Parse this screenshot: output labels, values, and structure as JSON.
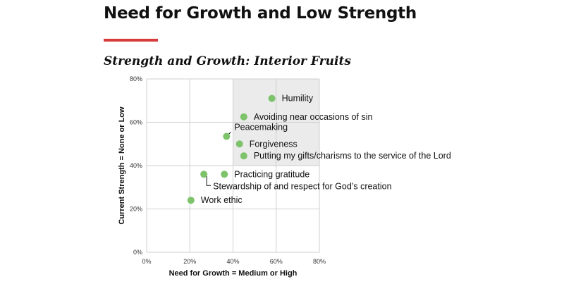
{
  "slide": {
    "title": "Need for Growth and Low Strength",
    "accent_color": "#d63a3a"
  },
  "chart_data": {
    "type": "scatter",
    "subtitle": "Strength and Growth:  Interior Fruits",
    "xlabel": "Need for Growth = Medium or High",
    "ylabel": "Current Strength = None or Low",
    "xlim": [
      0,
      80
    ],
    "ylim": [
      0,
      80
    ],
    "xticks": [
      0,
      20,
      40,
      60,
      80
    ],
    "yticks": [
      0,
      20,
      40,
      60,
      80
    ],
    "tick_suffix": "%",
    "grid": true,
    "point_color": "#7dc36b",
    "highlight_region": {
      "x": [
        40,
        80
      ],
      "y": [
        40,
        80
      ],
      "color": "#ebebeb"
    },
    "points": [
      {
        "label": "Humility",
        "x": 58,
        "y": 71
      },
      {
        "label": "Avoiding near occasions of sin",
        "x": 45,
        "y": 62.5
      },
      {
        "label": "Peacemaking",
        "x": 37,
        "y": 53.5
      },
      {
        "label": "Forgiveness",
        "x": 43,
        "y": 50
      },
      {
        "label": "Putting my gifts/charisms to the service of the Lord",
        "x": 45,
        "y": 44.5
      },
      {
        "label": "Practicing gratitude",
        "x": 36,
        "y": 36
      },
      {
        "label": "Stewardship of and respect for God’s creation",
        "x": 26.5,
        "y": 36
      },
      {
        "label": "Work ethic",
        "x": 20.5,
        "y": 24
      }
    ]
  }
}
